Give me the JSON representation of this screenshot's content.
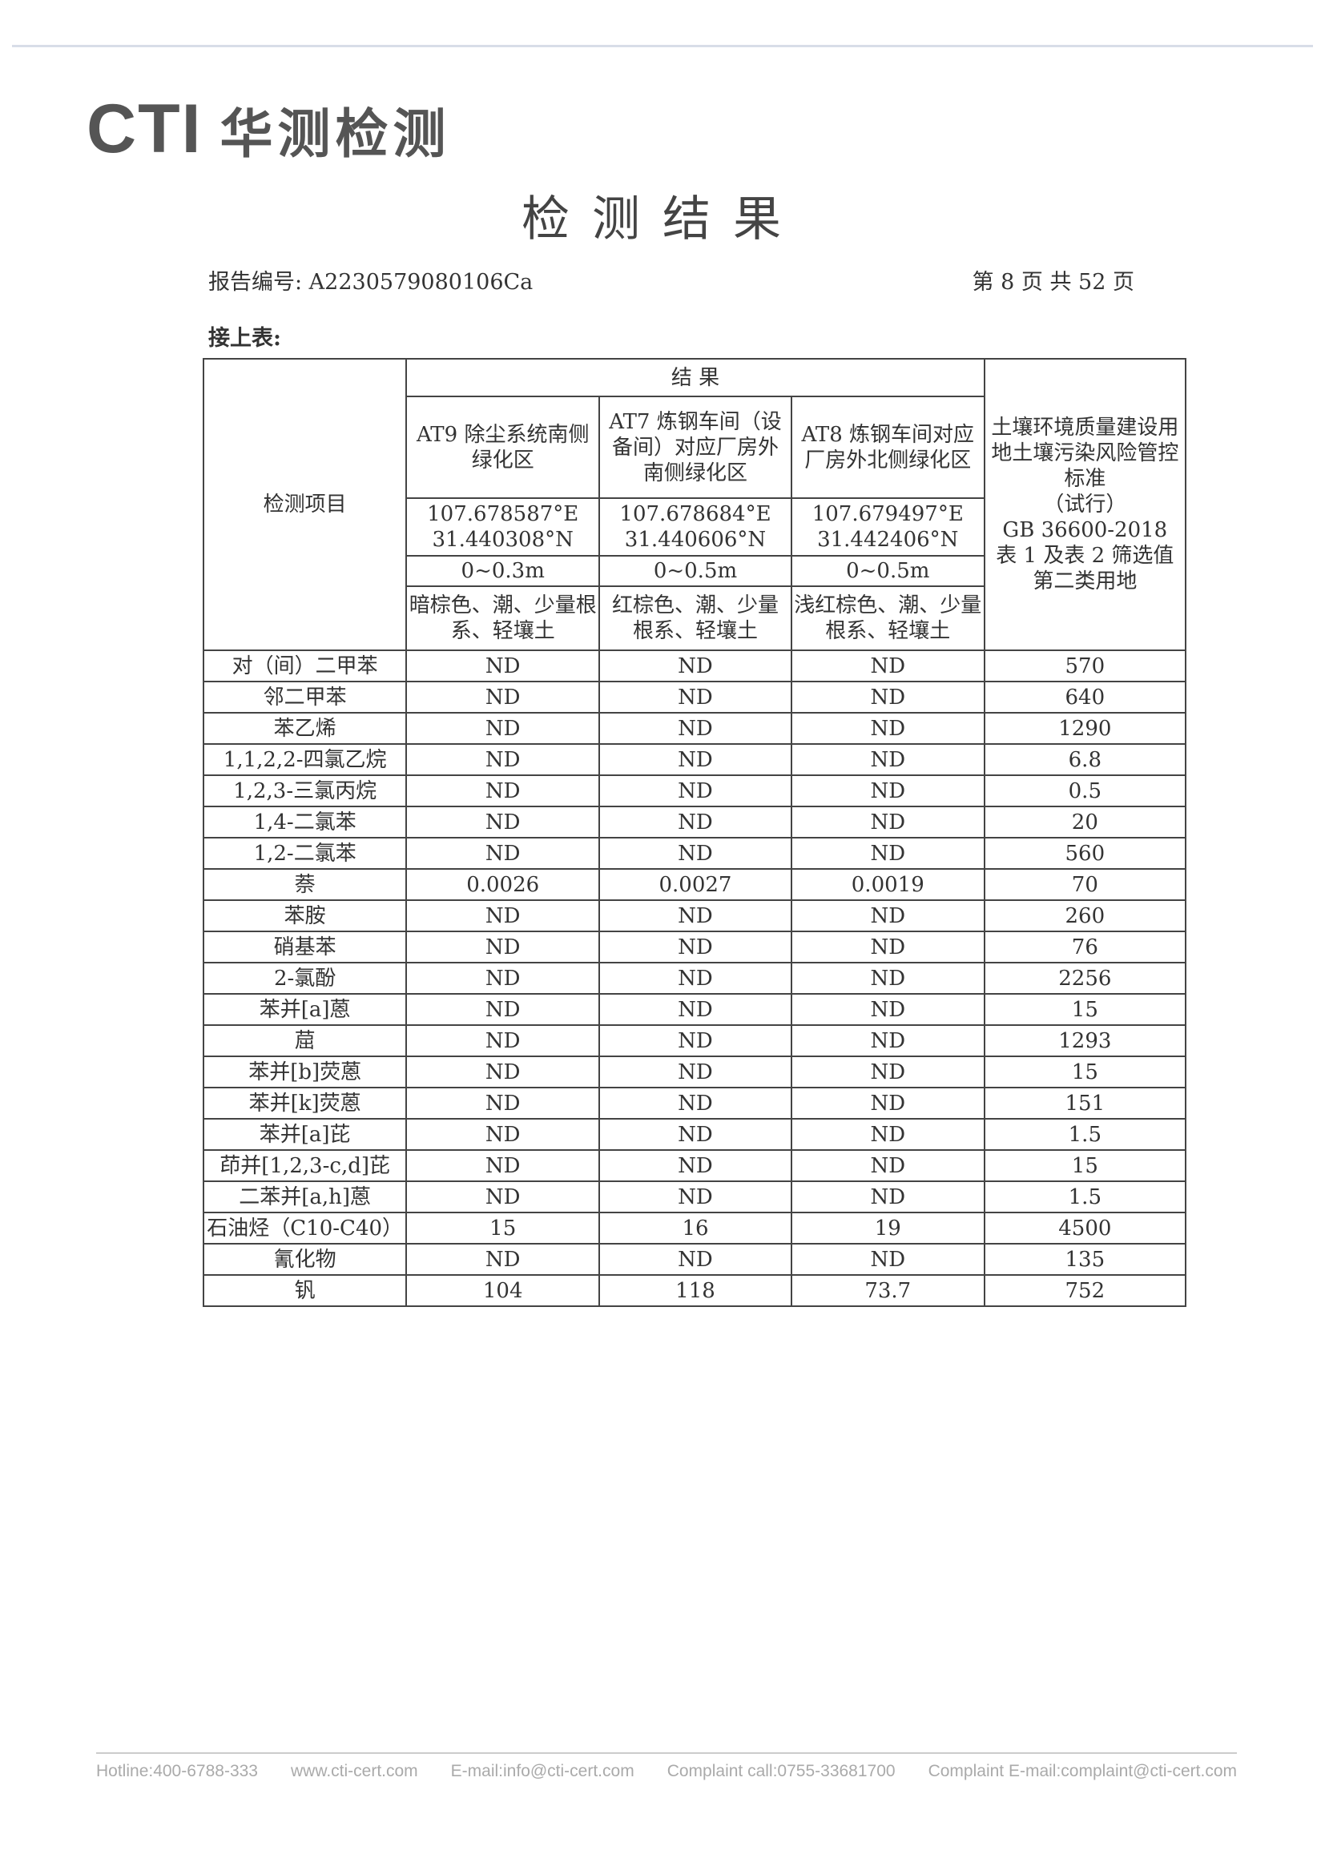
{
  "logo": {
    "brand": "CTI",
    "name_cn": "华测检测"
  },
  "title": "检测结果",
  "report_number": "报告编号: A2230579080106Ca",
  "page_info": "第 8 页 共 52 页",
  "continued": "接上表:",
  "table": {
    "item_header": "检测项目",
    "results_header": "结 果",
    "standard_header": [
      "土壤环境质量建设用地土壤污染风险管控标准",
      "（试行）",
      "GB 36600-2018",
      "表 1 及表 2 筛选值",
      "第二类用地"
    ],
    "samples": [
      {
        "name": "AT9 除尘系统南侧绿化区",
        "lon": "107.678587°E",
        "lat": "31.440308°N",
        "depth": "0~0.3m",
        "desc": "暗棕色、潮、少量根系、轻壤土"
      },
      {
        "name": "AT7 炼钢车间（设备间）对应厂房外南侧绿化区",
        "lon": "107.678684°E",
        "lat": "31.440606°N",
        "depth": "0~0.5m",
        "desc": "红棕色、潮、少量根系、轻壤土"
      },
      {
        "name": "AT8 炼钢车间对应厂房外北侧绿化区",
        "lon": "107.679497°E",
        "lat": "31.442406°N",
        "depth": "0~0.5m",
        "desc": "浅红棕色、潮、少量根系、轻壤土"
      }
    ],
    "rows": [
      [
        "对（间）二甲苯",
        "ND",
        "ND",
        "ND",
        "570"
      ],
      [
        "邻二甲苯",
        "ND",
        "ND",
        "ND",
        "640"
      ],
      [
        "苯乙烯",
        "ND",
        "ND",
        "ND",
        "1290"
      ],
      [
        "1,1,2,2-四氯乙烷",
        "ND",
        "ND",
        "ND",
        "6.8"
      ],
      [
        "1,2,3-三氯丙烷",
        "ND",
        "ND",
        "ND",
        "0.5"
      ],
      [
        "1,4-二氯苯",
        "ND",
        "ND",
        "ND",
        "20"
      ],
      [
        "1,2-二氯苯",
        "ND",
        "ND",
        "ND",
        "560"
      ],
      [
        "萘",
        "0.0026",
        "0.0027",
        "0.0019",
        "70"
      ],
      [
        "苯胺",
        "ND",
        "ND",
        "ND",
        "260"
      ],
      [
        "硝基苯",
        "ND",
        "ND",
        "ND",
        "76"
      ],
      [
        "2-氯酚",
        "ND",
        "ND",
        "ND",
        "2256"
      ],
      [
        "苯并[a]蒽",
        "ND",
        "ND",
        "ND",
        "15"
      ],
      [
        "䓛",
        "ND",
        "ND",
        "ND",
        "1293"
      ],
      [
        "苯并[b]荧蒽",
        "ND",
        "ND",
        "ND",
        "15"
      ],
      [
        "苯并[k]荧蒽",
        "ND",
        "ND",
        "ND",
        "151"
      ],
      [
        "苯并[a]芘",
        "ND",
        "ND",
        "ND",
        "1.5"
      ],
      [
        "茚并[1,2,3-c,d]芘",
        "ND",
        "ND",
        "ND",
        "15"
      ],
      [
        "二苯并[a,h]蒽",
        "ND",
        "ND",
        "ND",
        "1.5"
      ],
      [
        "石油烃（C10-C40）",
        "15",
        "16",
        "19",
        "4500"
      ],
      [
        "氰化物",
        "ND",
        "ND",
        "ND",
        "135"
      ],
      [
        "钒",
        "104",
        "118",
        "73.7",
        "752"
      ]
    ]
  },
  "footer": [
    "Hotline:400-6788-333",
    "www.cti-cert.com",
    "E-mail:info@cti-cert.com",
    "Complaint call:0755-33681700",
    "Complaint E-mail:complaint@cti-cert.com"
  ]
}
